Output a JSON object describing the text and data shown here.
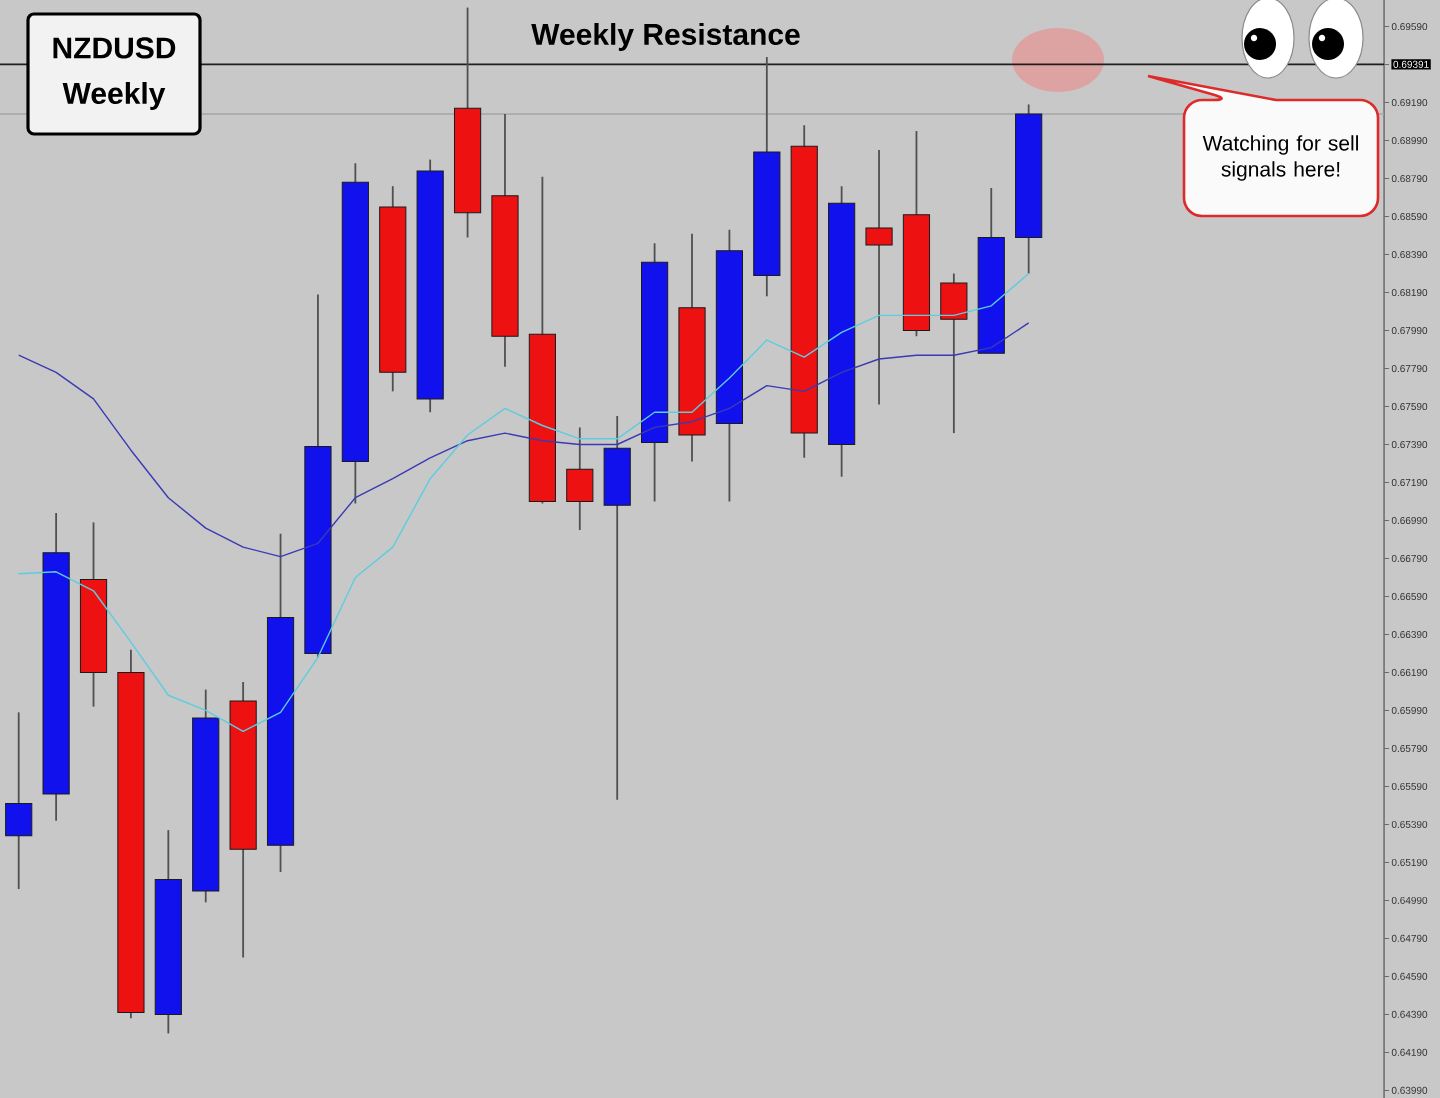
{
  "chart_data": {
    "type": "candlestick",
    "title": "NZDUSD",
    "subtitle": "Weekly",
    "categories": [
      null,
      null,
      null,
      null,
      null,
      null,
      null,
      null,
      null,
      null,
      null,
      null,
      null,
      null,
      null,
      null,
      null,
      null,
      null,
      null,
      null,
      null,
      null,
      null,
      null,
      null,
      null,
      null,
      null,
      null,
      null,
      null,
      null,
      null,
      null,
      null,
      null
    ],
    "ohlc": [
      [
        0.6533,
        0.6598,
        0.6505,
        0.655
      ],
      [
        0.6555,
        0.6703,
        0.6541,
        0.6682
      ],
      [
        0.6668,
        0.6698,
        0.6601,
        0.6619
      ],
      [
        0.6619,
        0.6631,
        0.6437,
        0.644
      ],
      [
        0.6439,
        0.6536,
        0.6429,
        0.651
      ],
      [
        0.6504,
        0.661,
        0.6498,
        0.6595
      ],
      [
        0.6604,
        0.6614,
        0.6469,
        0.6526
      ],
      [
        0.6528,
        0.6692,
        0.6514,
        0.6648
      ],
      [
        0.6629,
        0.6818,
        0.6627,
        0.6738
      ],
      [
        0.673,
        0.6887,
        0.6708,
        0.6877
      ],
      [
        0.6864,
        0.6875,
        0.6767,
        0.6777
      ],
      [
        0.6763,
        0.6889,
        0.6756,
        0.6883
      ],
      [
        0.6916,
        0.6969,
        0.6848,
        0.6861
      ],
      [
        0.687,
        0.6913,
        0.678,
        0.6796
      ],
      [
        0.6797,
        0.688,
        0.6708,
        0.6709
      ],
      [
        0.6726,
        0.6748,
        0.6694,
        0.6709
      ],
      [
        0.6707,
        0.6754,
        0.6552,
        0.6737
      ],
      [
        0.674,
        0.6845,
        0.6709,
        0.6835
      ],
      [
        0.6811,
        0.685,
        0.673,
        0.6744
      ],
      [
        0.675,
        0.6852,
        0.6709,
        0.6841
      ],
      [
        0.6828,
        0.6943,
        0.6817,
        0.6893
      ],
      [
        0.6896,
        0.6907,
        0.6732,
        0.6745
      ],
      [
        0.6739,
        0.6875,
        0.6722,
        0.6866
      ],
      [
        0.6853,
        0.6894,
        0.676,
        0.6844
      ],
      [
        0.686,
        0.6904,
        0.6796,
        0.6799
      ],
      [
        0.6824,
        0.6829,
        0.6745,
        0.6805
      ],
      [
        0.6787,
        0.6874,
        0.6787,
        0.6848
      ],
      [
        0.6848,
        0.6918,
        0.6829,
        0.6913
      ],
      null,
      null,
      null,
      null,
      null,
      null,
      null,
      null,
      null
    ],
    "colors": [
      "#1111ee",
      "#1111ee",
      "#ee1111",
      "#ee1111",
      "#1111ee",
      "#1111ee",
      "#ee1111",
      "#1111ee",
      "#1111ee",
      "#1111ee",
      "#ee1111",
      "#1111ee",
      "#ee1111",
      "#ee1111",
      "#ee1111",
      "#ee1111",
      "#1111ee",
      "#1111ee",
      "#ee1111",
      "#1111ee",
      "#1111ee",
      "#ee1111",
      "#1111ee",
      "#ee1111",
      "#ee1111",
      "#ee1111",
      "#1111ee",
      "#1111ee",
      null,
      null,
      null,
      null,
      null,
      null,
      null,
      null,
      null
    ],
    "series": [
      {
        "type": "line",
        "color": "#3a3ab4",
        "values": [
          0.6786,
          0.6777,
          0.6763,
          0.6736,
          0.6711,
          0.6695,
          0.6685,
          0.668,
          0.6687,
          0.6711,
          0.6721,
          0.6732,
          0.6741,
          0.6745,
          0.6741,
          0.6739,
          0.6739,
          0.6748,
          0.6751,
          0.6758,
          0.677,
          0.6767,
          0.6777,
          0.6784,
          0.6786,
          0.6786,
          0.679,
          0.6803,
          null,
          null,
          null,
          null,
          null,
          null,
          null,
          null,
          null
        ]
      },
      {
        "type": "line",
        "color": "#5ccde0",
        "values": [
          0.6671,
          0.6672,
          0.6662,
          0.6635,
          0.6607,
          0.6599,
          0.6588,
          0.6598,
          0.6627,
          0.6669,
          0.6685,
          0.6721,
          0.6744,
          0.6758,
          0.6749,
          0.6742,
          0.6742,
          0.6756,
          0.6756,
          0.6774,
          0.6794,
          0.6785,
          0.6798,
          0.6807,
          0.6807,
          0.6807,
          0.6812,
          0.6829,
          null,
          null,
          null,
          null,
          null,
          null,
          null,
          null,
          null
        ]
      }
    ],
    "ylim": [
      0.6395,
      0.6973
    ],
    "yticks": [
      {
        "value": 0.6399,
        "label": "0.63990"
      },
      {
        "value": 0.6419,
        "label": "0.64190"
      },
      {
        "value": 0.6439,
        "label": "0.64390"
      },
      {
        "value": 0.6459,
        "label": "0.64590"
      },
      {
        "value": 0.6479,
        "label": "0.64790"
      },
      {
        "value": 0.6499,
        "label": "0.64990"
      },
      {
        "value": 0.6519,
        "label": "0.65190"
      },
      {
        "value": 0.6539,
        "label": "0.65390"
      },
      {
        "value": 0.6559,
        "label": "0.65590"
      },
      {
        "value": 0.6579,
        "label": "0.65790"
      },
      {
        "value": 0.6599,
        "label": "0.65990"
      },
      {
        "value": 0.6619,
        "label": "0.66190"
      },
      {
        "value": 0.6639,
        "label": "0.66390"
      },
      {
        "value": 0.6659,
        "label": "0.66590"
      },
      {
        "value": 0.6679,
        "label": "0.66790"
      },
      {
        "value": 0.6699,
        "label": "0.66990"
      },
      {
        "value": 0.6719,
        "label": "0.67190"
      },
      {
        "value": 0.6739,
        "label": "0.67390"
      },
      {
        "value": 0.6759,
        "label": "0.67590"
      },
      {
        "value": 0.6779,
        "label": "0.67790"
      },
      {
        "value": 0.6799,
        "label": "0.67990"
      },
      {
        "value": 0.6819,
        "label": "0.68190"
      },
      {
        "value": 0.6839,
        "label": "0.68390"
      },
      {
        "value": 0.6859,
        "label": "0.68590"
      },
      {
        "value": 0.6879,
        "label": "0.68790"
      },
      {
        "value": 0.6899,
        "label": "0.68990"
      },
      {
        "value": 0.6919,
        "label": "0.69190"
      },
      {
        "value": 0.69391,
        "label": "0.69391"
      },
      {
        "value": 0.6959,
        "label": "0.69590"
      }
    ],
    "ref_lines": [
      {
        "axis": "y",
        "value": 0.69391,
        "label": "Weekly Resistance",
        "color": "#1e1e1e"
      },
      {
        "axis": "y",
        "value": 0.6913,
        "color": "#a6a6a6"
      }
    ],
    "annotations": [
      "Watching for sell signals here!"
    ]
  }
}
